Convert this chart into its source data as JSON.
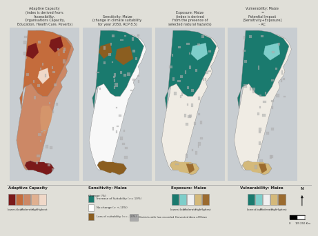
{
  "titles": [
    "Adaptive Capacity\n(index is derived from:\nAccessibility,\nOrganisations Capacity,\nEducation, Health Care, Poverty)",
    "Sensitivity: Maize\n(change in climate suitability\nfor year 2050, RCP 8.5)",
    "Exposure: Maize\n(index is derived\nfrom the presence of\nselected natural hazards)",
    "Vulnerability: Maize\n=\nPotential Impact\n[Sensitivity+Exposure]\n- AC"
  ],
  "legend_titles": [
    "Adaptive Capacity",
    "Sensitivity: Maize",
    "Exposure: Maize",
    "Vulnerability: Maize"
  ],
  "adaptive_colors": [
    "#7b1a1a",
    "#c46c3c",
    "#cc8866",
    "#e0b090",
    "#f0d8c8"
  ],
  "adaptive_labels": [
    "Lowest",
    "Low",
    "Moderate",
    "High",
    "Highest"
  ],
  "sensitivity_colors": [
    "#1a7a6e",
    "#ffffff",
    "#8b5e20"
  ],
  "sensitivity_labels": [
    "Increase of Suitability (>= 10%)",
    "No change (> +-10%)",
    "Loss of suitability (<= -10%)"
  ],
  "exposure_colors": [
    "#1a7a6e",
    "#7ececa",
    "#f0f0f0",
    "#d4b97a",
    "#9b6b2f"
  ],
  "exposure_labels": [
    "Lowest",
    "Low",
    "Moderate",
    "High",
    "Highest"
  ],
  "vulnerability_colors": [
    "#1a7a6e",
    "#7ececa",
    "#f0f0f0",
    "#d4b97a",
    "#9b6b2f"
  ],
  "vulnerability_labels": [
    "Lowest",
    "Low",
    "Moderate",
    "High",
    "Highest"
  ],
  "district_color": "#aaaaaa",
  "district_label": "Districts with low recorded Harvested Area of Maize",
  "overall_bg": "#e0dfd8",
  "panel_bg": "#c8cdd1",
  "title_fontsize": 3.5,
  "legend_fontsize": 4.0,
  "legend_label_fontsize": 3.2
}
